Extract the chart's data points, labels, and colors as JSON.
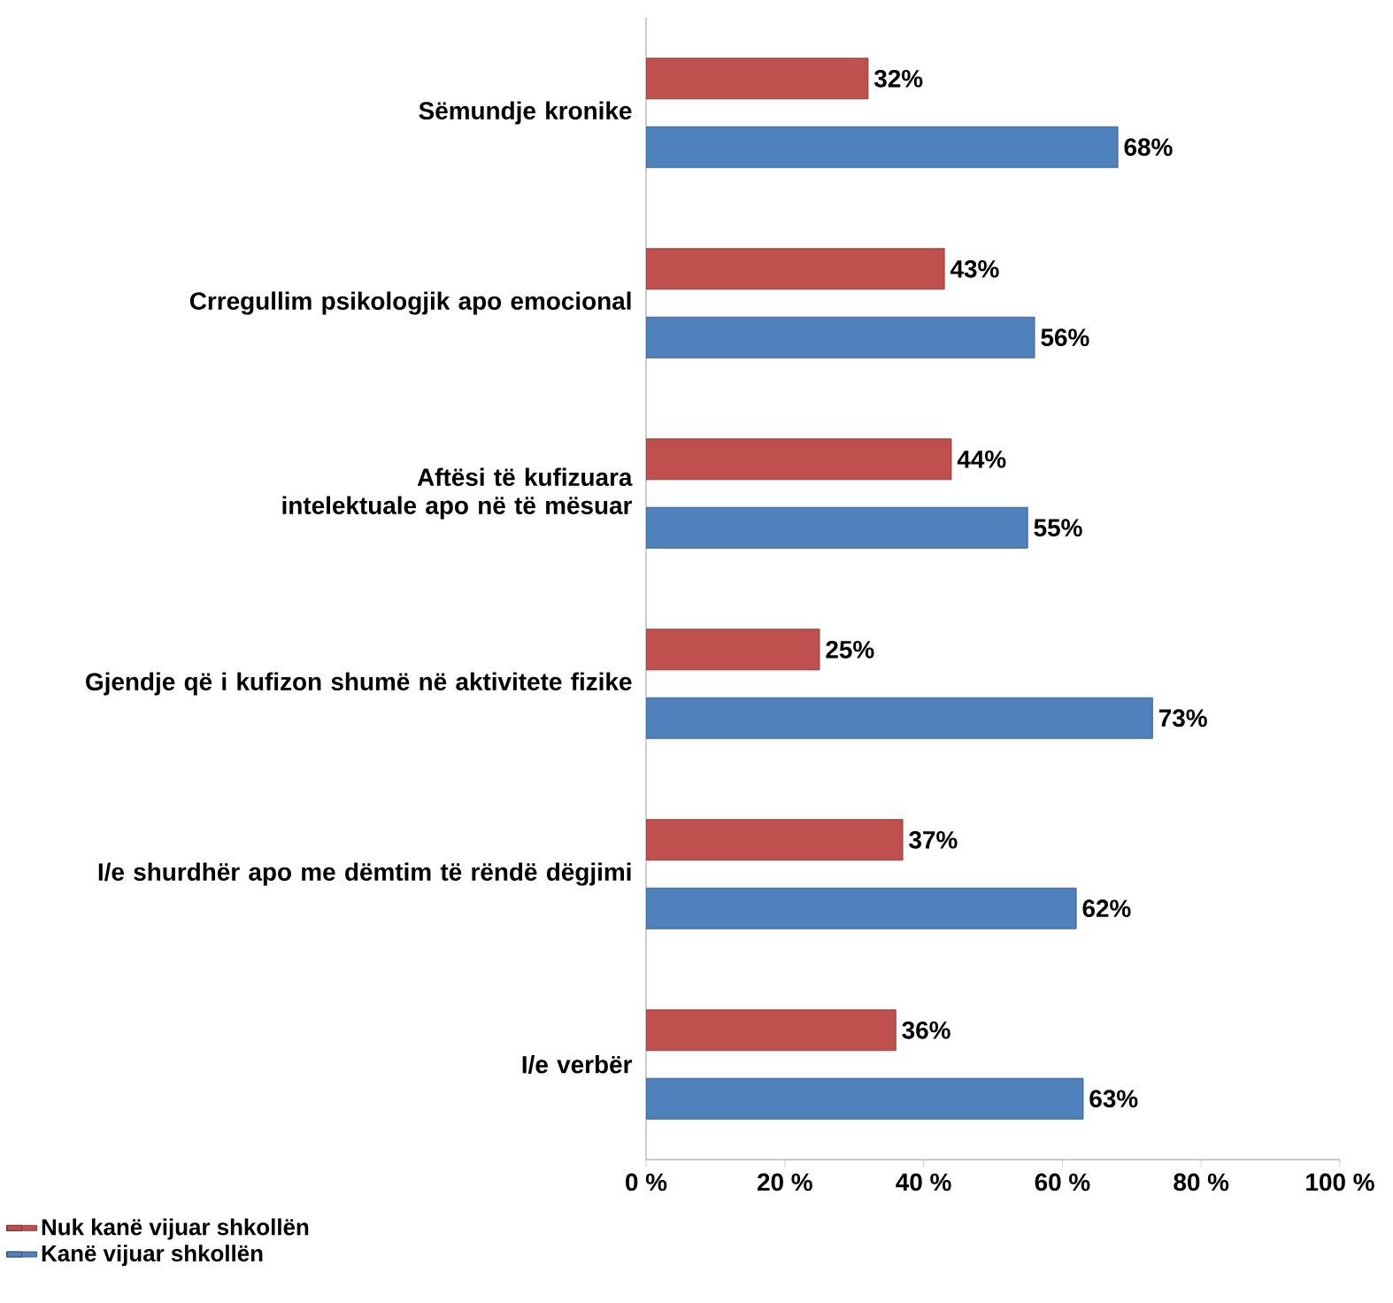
{
  "chart_data": {
    "type": "bar",
    "orientation": "horizontal",
    "categories": [
      "Sëmundje kronike",
      "Crregullim psikologjik apo emocional",
      "Aftësi të kufizuara intelektuale apo në të mësuar",
      "Gjendje që i kufizon shumë në aktivitete fizike",
      "I/e shurdhër apo me dëmtim të rëndë dëgjimi",
      "I/e verbër"
    ],
    "series": [
      {
        "name": "Nuk kanë vijuar shkollën",
        "color": "#c0504d",
        "values": [
          32,
          43,
          44,
          25,
          37,
          36
        ],
        "value_labels": [
          "32%",
          "43%",
          "44%",
          "25%",
          "37%",
          "36%"
        ]
      },
      {
        "name": "Kanë vijuar shkollën",
        "color": "#4f81bd",
        "values": [
          68,
          56,
          55,
          73,
          62,
          63
        ],
        "value_labels": [
          "68%",
          "56%",
          "55%",
          "73%",
          "62%",
          "63%"
        ]
      }
    ],
    "xlim": [
      0,
      100
    ],
    "xticks": [
      {
        "value": 0,
        "label": "0 %"
      },
      {
        "value": 20,
        "label": "20 %"
      },
      {
        "value": 40,
        "label": "40 %"
      },
      {
        "value": 60,
        "label": "60 %"
      },
      {
        "value": 80,
        "label": "80 %"
      },
      {
        "value": 100,
        "label": "100 %"
      }
    ],
    "legend": "bottom left"
  }
}
